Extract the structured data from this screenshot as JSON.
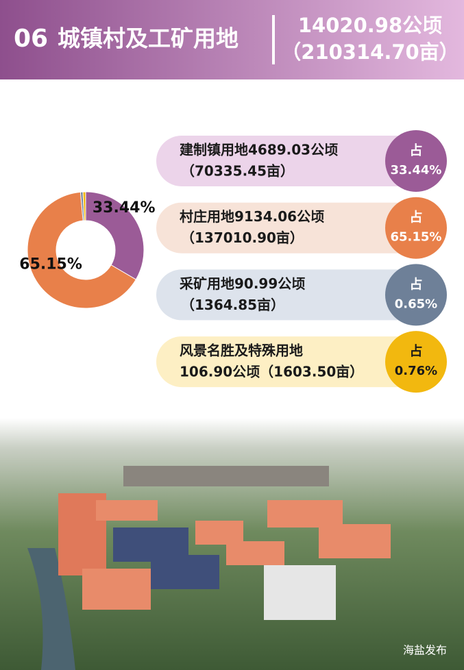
{
  "header": {
    "number": "06",
    "title": "城镇村及工矿用地",
    "total_area": "14020.98公顷",
    "total_mu": "（210314.70亩）"
  },
  "chart_data": {
    "type": "pie",
    "values": [
      33.44,
      65.15,
      0.65,
      0.76
    ],
    "value_labels": [
      "33.44%",
      "65.15%",
      "0.65%",
      "0.76%"
    ],
    "colors": [
      "#9b5b97",
      "#e8804a",
      "#6e8098",
      "#f2b80f"
    ]
  },
  "cards": [
    {
      "lines": [
        "建制镇用地4689.03公顷",
        "（70335.45亩）"
      ],
      "prefix": "占"
    },
    {
      "lines": [
        "村庄用地9134.06公顷",
        "（137010.90亩）"
      ],
      "prefix": "占"
    },
    {
      "lines": [
        "采矿用地90.99公顷",
        "（1364.85亩）"
      ],
      "prefix": "占"
    },
    {
      "lines": [
        "风景名胜及特殊用地",
        "106.90公顷（1603.50亩）"
      ],
      "prefix": "占"
    }
  ],
  "footer": {
    "source": "海盐发布"
  }
}
